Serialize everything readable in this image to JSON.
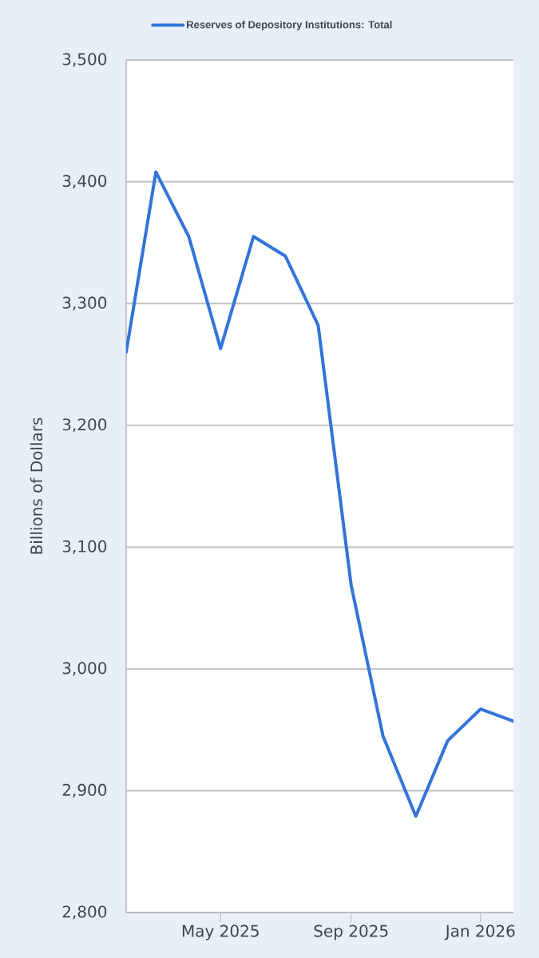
{
  "chart_data": {
    "type": "line",
    "legend": "top left",
    "grid": "y",
    "marker": "none",
    "ylabel": "Billions of Dollars",
    "x": [
      "2025-02",
      "2025-03",
      "2025-04",
      "2025-05",
      "2025-06",
      "2025-07",
      "2025-08",
      "2025-09",
      "2025-10",
      "2025-11",
      "2025-12",
      "2026-01",
      "2026-02"
    ],
    "series": [
      {
        "name": "Reserves of Depository Institutions: Total",
        "color": "#3374d9",
        "values": [
          3260,
          3408,
          3355,
          3263,
          3355,
          3339,
          3282,
          3069,
          2945,
          2879,
          2941,
          2967,
          2957
        ]
      }
    ],
    "xlim": [
      "2025-02",
      "2026-02"
    ],
    "xticks": [
      {
        "value": "2025-05",
        "label": "May 2025"
      },
      {
        "value": "2025-09",
        "label": "Sep 2025"
      },
      {
        "value": "2026-01",
        "label": "Jan 2026"
      }
    ],
    "ylim": [
      2800,
      3500
    ],
    "yticks": [
      {
        "value": 2800,
        "label": "2,800"
      },
      {
        "value": 2900,
        "label": "2,900"
      },
      {
        "value": 3000,
        "label": "3,000"
      },
      {
        "value": 3100,
        "label": "3,100"
      },
      {
        "value": 3200,
        "label": "3,200"
      },
      {
        "value": 3300,
        "label": "3,300"
      },
      {
        "value": 3400,
        "label": "3,400"
      },
      {
        "value": 3500,
        "label": "3,500"
      }
    ]
  }
}
